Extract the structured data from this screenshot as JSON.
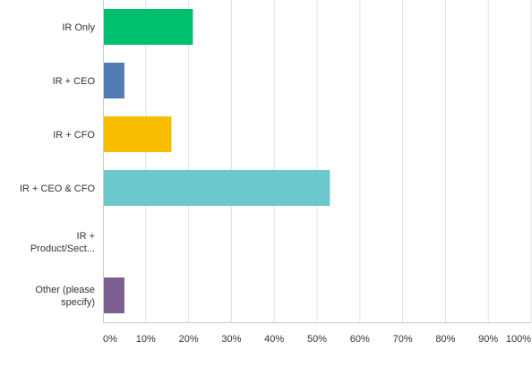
{
  "chart_data": {
    "type": "bar",
    "orientation": "horizontal",
    "categories": [
      [
        "IR Only"
      ],
      [
        "IR + CEO"
      ],
      [
        "IR + CFO"
      ],
      [
        "IR + CEO & CFO"
      ],
      [
        "IR +",
        "Product/Sect..."
      ],
      [
        "Other (please",
        "specify)"
      ]
    ],
    "values": [
      21,
      5,
      16,
      53,
      0,
      5
    ],
    "colors": [
      "#00bf6f",
      "#507cb6",
      "#f9be00",
      "#6bc8cd",
      "#ff8b4f",
      "#7d5e90"
    ],
    "xlim": [
      0,
      100
    ],
    "xticks": [
      "0%",
      "10%",
      "20%",
      "30%",
      "40%",
      "50%",
      "60%",
      "70%",
      "80%",
      "90%",
      "100%"
    ],
    "grid": "vertical",
    "title": "",
    "xlabel": "",
    "ylabel": ""
  }
}
